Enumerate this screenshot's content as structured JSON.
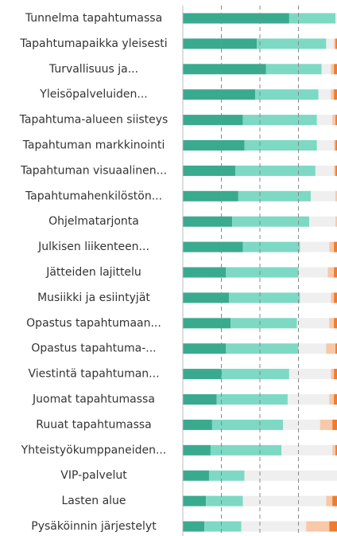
{
  "chart_data": {
    "type": "stacked-bar-horizontal",
    "categories": [
      "Tunnelma tapahtumassa",
      "Tapahtumapaikka yleisesti",
      "Turvallisuus ja...",
      "Yleisöpalveluiden...",
      "Tapahtuma-alueen siisteys",
      "Tapahtuman markkinointi",
      "Tapahtuman visuaalinen...",
      "Tapahtumahenkilöstön...",
      "Ohjelmatarjonta",
      "Julkisen liikenteen...",
      "Jätteiden lajittelu",
      "Musiikki ja esiintyjät",
      "Opastus tapahtumaan...",
      "Opastus tapahtuma-...",
      "Viestintä tapahtuman...",
      "Juomat tapahtumassa",
      "Ruuat tapahtumassa",
      "Yhteistyökumppaneiden...",
      "VIP-palvelut",
      "Lasten alue",
      "Pysäköinnin järjestelyt"
    ],
    "series": [
      {
        "color": "#3aaa8f",
        "values": [
          69,
          48,
          54,
          47,
          39,
          40,
          34,
          36,
          32,
          39,
          28,
          30,
          31,
          28,
          25,
          22,
          19,
          18,
          17,
          15,
          14
        ]
      },
      {
        "color": "#7dd9c4",
        "values": [
          30,
          45,
          36,
          41,
          48,
          47,
          52,
          47,
          50,
          37,
          47,
          46,
          43,
          47,
          44,
          46,
          46,
          46,
          23,
          24,
          24
        ]
      },
      {
        "color": "#efefef",
        "values": [
          1,
          5,
          6,
          8,
          10,
          11,
          12,
          16,
          17,
          19,
          19,
          20,
          21,
          18,
          27,
          27,
          24,
          33,
          60,
          54,
          42
        ]
      },
      {
        "color": "#f8c8a8",
        "values": [
          0,
          1,
          2,
          2,
          2,
          1,
          1,
          1,
          1,
          3,
          4,
          2,
          3,
          6,
          2,
          3,
          8,
          2,
          0,
          4,
          15
        ]
      },
      {
        "color": "#ef7c2e",
        "values": [
          0,
          1,
          2,
          2,
          1,
          1,
          1,
          0,
          0,
          2,
          2,
          2,
          2,
          1,
          2,
          2,
          3,
          1,
          0,
          3,
          5
        ]
      }
    ],
    "xlim": [
      0,
      100
    ],
    "xticks": [
      0,
      25,
      50,
      75,
      100
    ],
    "grid": true
  }
}
